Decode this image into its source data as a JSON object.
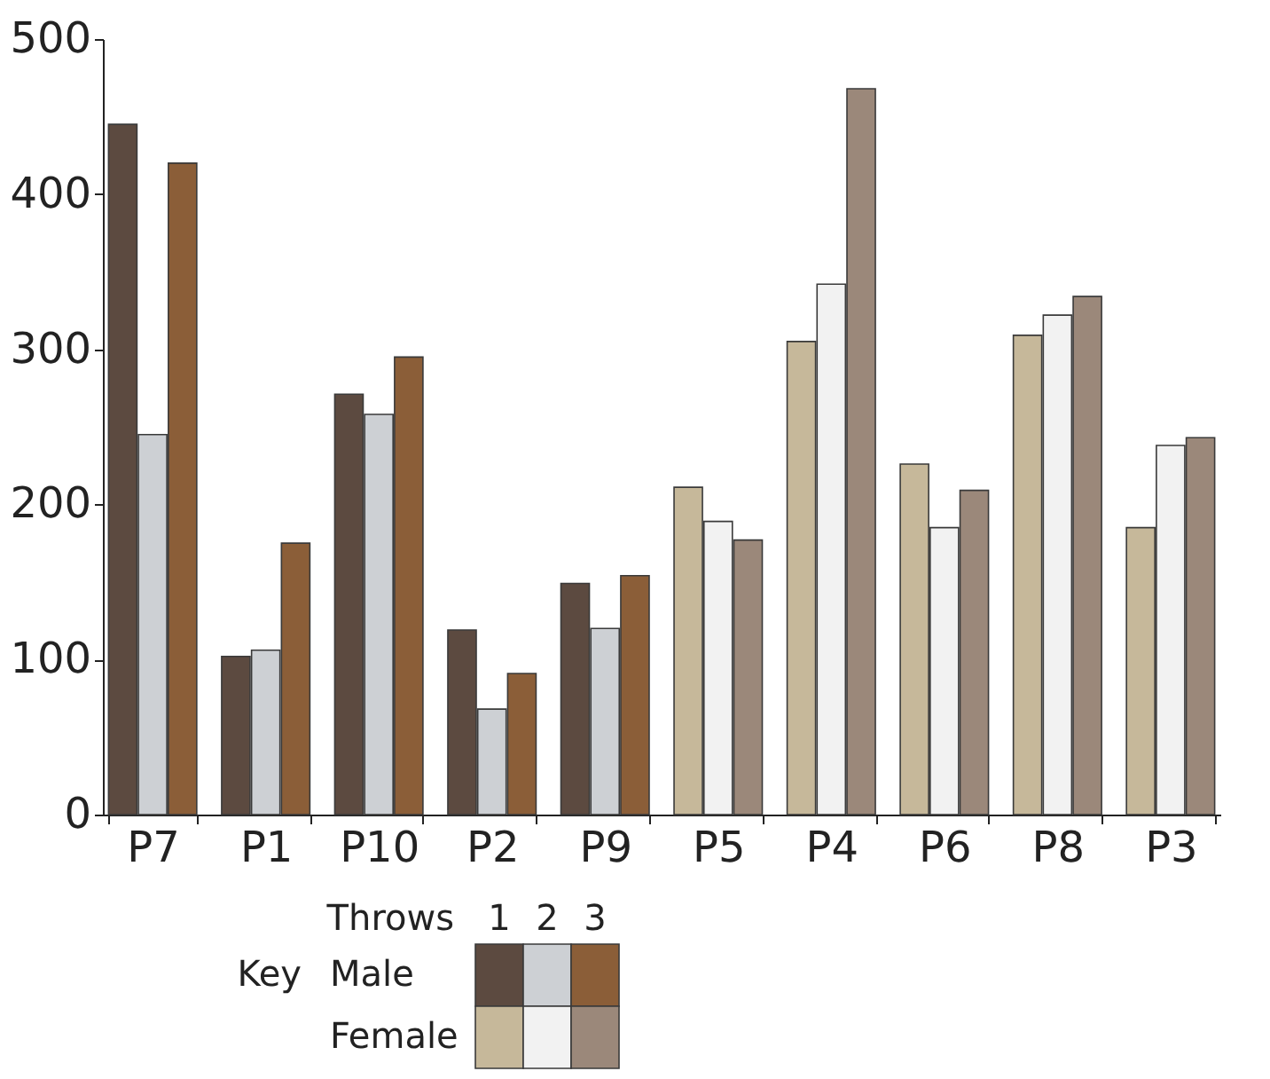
{
  "chart_data": {
    "type": "bar",
    "categories": [
      "P7",
      "P1",
      "P10",
      "P2",
      "P9",
      "P5",
      "P4",
      "P6",
      "P8",
      "P3"
    ],
    "series": [
      {
        "name": "1",
        "values": [
          445,
          102,
          271,
          119,
          149,
          211,
          305,
          226,
          309,
          185
        ],
        "colors": [
          "#5c4a40",
          "#5c4a40",
          "#5c4a40",
          "#5c4a40",
          "#5c4a40",
          "#c6b89a",
          "#c6b89a",
          "#c6b89a",
          "#c6b89a",
          "#c6b89a"
        ]
      },
      {
        "name": "2",
        "values": [
          245,
          106,
          258,
          68,
          120,
          189,
          342,
          185,
          322,
          238
        ],
        "colors": [
          "#cdd0d4",
          "#cdd0d4",
          "#cdd0d4",
          "#cdd0d4",
          "#cdd0d4",
          "#f2f2f2",
          "#f2f2f2",
          "#f2f2f2",
          "#f2f2f2",
          "#f2f2f2"
        ]
      },
      {
        "name": "3",
        "values": [
          420,
          175,
          295,
          91,
          154,
          177,
          468,
          209,
          334,
          243
        ],
        "colors": [
          "#8b5e38",
          "#8b5e38",
          "#8b5e38",
          "#8b5e38",
          "#8b5e38",
          "#9b887a",
          "#9b887a",
          "#9b887a",
          "#9b887a",
          "#9b887a"
        ]
      }
    ],
    "ylim": [
      0,
      500
    ],
    "yticks": [
      0,
      100,
      200,
      300,
      400,
      500
    ],
    "grid": false,
    "legend": "bottom",
    "legend_title": "Throws",
    "annotations": [
      "Key",
      "Male",
      "Female"
    ]
  }
}
